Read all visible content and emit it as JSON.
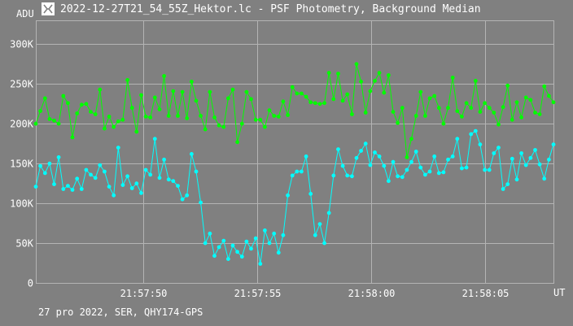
{
  "header": {
    "title": "2022-12-27T21_54_55Z_Hektor.lc - PSF Photometry, Background Median",
    "icon": "app-logo-icon"
  },
  "footer": {
    "text": "27 pro 2022, SER, QHY174-GPS"
  },
  "colors": {
    "background": "#808080",
    "grid": "#b4b4b4",
    "series_green": "#00ff00",
    "series_cyan": "#00ffff",
    "text": "#ffffff"
  },
  "chart_data": {
    "type": "line",
    "title": "2022-12-27T21_54_55Z_Hektor.lc - PSF Photometry, Background Median",
    "ylabel": "ADU",
    "xlabel": "UT",
    "xlim": [
      "21:57:45.1",
      "21:58:08.5"
    ],
    "ylim": [
      0,
      330000
    ],
    "grid": true,
    "x_ticks": [
      "21:57:50",
      "21:57:55",
      "21:58:00",
      "21:58:05"
    ],
    "y_ticks": [
      "0",
      "50K",
      "100K",
      "150K",
      "200K",
      "250K",
      "300K"
    ],
    "y_tick_values": [
      0,
      50000,
      100000,
      150000,
      200000,
      250000,
      300000
    ],
    "series": [
      {
        "color": "#00ff00",
        "values": [
          200000,
          216000,
          232000,
          206000,
          204000,
          200000,
          235000,
          226000,
          183000,
          213000,
          224000,
          225000,
          215000,
          212000,
          243000,
          194000,
          209000,
          196000,
          203000,
          205000,
          255000,
          220000,
          190000,
          236000,
          209000,
          208000,
          233000,
          218000,
          260000,
          210000,
          241000,
          210000,
          240000,
          207000,
          253000,
          229000,
          210000,
          193000,
          240000,
          208000,
          198000,
          196000,
          232000,
          243000,
          177000,
          200000,
          240000,
          231000,
          205000,
          205000,
          196000,
          217000,
          210000,
          209000,
          228000,
          211000,
          246000,
          238000,
          238000,
          234000,
          227000,
          226000,
          225000,
          226000,
          264000,
          231000,
          263000,
          229000,
          237000,
          212000,
          275000,
          253000,
          214000,
          241000,
          254000,
          264000,
          239000,
          261000,
          215000,
          201000,
          220000,
          158000,
          181000,
          210000,
          240000,
          210000,
          232000,
          235000,
          220000,
          200000,
          220000,
          258000,
          216000,
          209000,
          226000,
          220000,
          254000,
          215000,
          226000,
          220000,
          214000,
          199000,
          221000,
          248000,
          205000,
          227000,
          208000,
          233000,
          230000,
          214000,
          212000,
          247000,
          235000,
          227000
        ]
      },
      {
        "color": "#00ffff",
        "values": [
          121000,
          147000,
          138000,
          150000,
          124000,
          158000,
          118000,
          122000,
          117000,
          131000,
          118000,
          142000,
          136000,
          132000,
          148000,
          140000,
          121000,
          110000,
          170000,
          123000,
          134000,
          119000,
          125000,
          113000,
          142000,
          136000,
          181000,
          132000,
          155000,
          130000,
          128000,
          122000,
          105000,
          110000,
          162000,
          140000,
          101000,
          50000,
          62000,
          34000,
          45000,
          53000,
          30000,
          47000,
          39000,
          33000,
          52000,
          43000,
          56000,
          24000,
          66000,
          50000,
          62000,
          38000,
          60000,
          110000,
          135000,
          140000,
          140000,
          159000,
          112000,
          60000,
          74000,
          50000,
          88000,
          135000,
          168000,
          147000,
          135000,
          134000,
          157000,
          166000,
          175000,
          148000,
          164000,
          159000,
          147000,
          128000,
          152000,
          134000,
          133000,
          142000,
          152000,
          165000,
          145000,
          136000,
          140000,
          159000,
          138000,
          139000,
          155000,
          159000,
          181000,
          144000,
          145000,
          187000,
          191000,
          174000,
          142000,
          142000,
          163000,
          170000,
          118000,
          124000,
          156000,
          130000,
          163000,
          148000,
          157000,
          167000,
          149000,
          131000,
          155000,
          174000
        ]
      }
    ]
  }
}
